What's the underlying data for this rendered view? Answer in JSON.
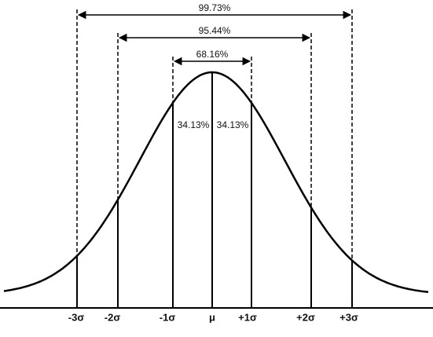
{
  "intervals": [
    {
      "label": "68.16%"
    },
    {
      "label": "95.44%"
    },
    {
      "label": "99.73%"
    }
  ],
  "halves": {
    "left": "34.13%",
    "right": "34.13%"
  },
  "axis_labels": [
    "-3σ",
    "-2σ",
    "-1σ",
    "μ",
    "+1σ",
    "+2σ",
    "+3σ"
  ]
}
